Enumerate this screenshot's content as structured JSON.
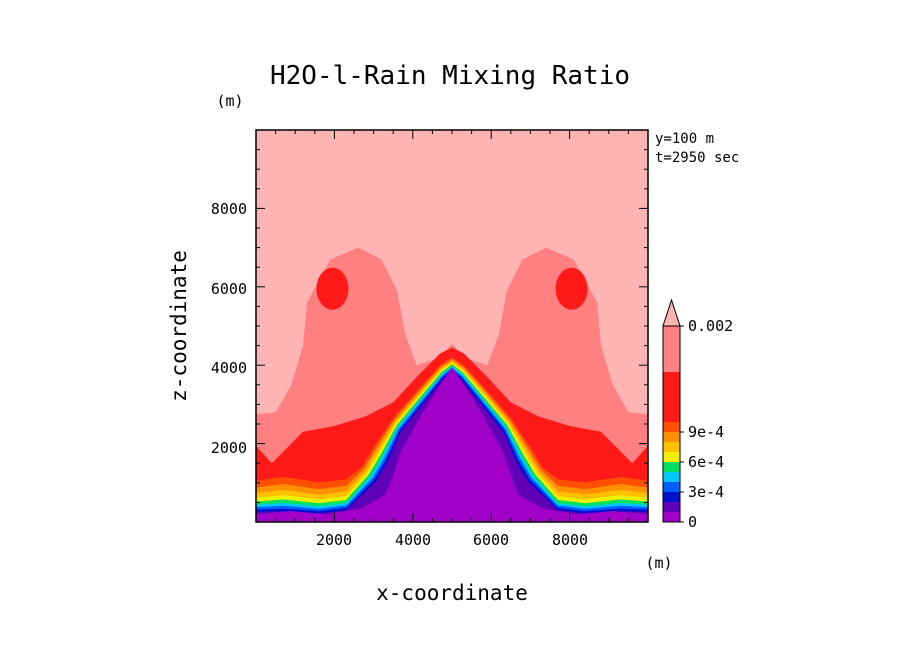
{
  "chart_data": {
    "type": "contour",
    "title": "H2O-l-Rain Mixing Ratio",
    "xlabel": "x-coordinate",
    "ylabel": "z-coordinate",
    "x_unit": "(m)",
    "y_unit": "(m)",
    "info": {
      "y_slice": "y=100 m",
      "time": "t=2950 sec"
    },
    "x_range": [
      0,
      10000
    ],
    "y_range": [
      0,
      10000
    ],
    "x_ticks": [
      2000,
      4000,
      6000,
      8000
    ],
    "x_tick_labels": [
      "2000",
      "4000",
      "6000",
      "8000"
    ],
    "y_ticks": [
      2000,
      4000,
      6000,
      8000
    ],
    "y_tick_labels": [
      "2000",
      "4000",
      "6000",
      "8000"
    ],
    "colorbar": {
      "levels": [
        0,
        0.0001,
        0.0002,
        0.0003,
        0.0004,
        0.0005,
        0.0006,
        0.0007,
        0.0008,
        0.0009,
        0.001,
        0.0015,
        0.002
      ],
      "colors": [
        "#a000c8",
        "#6000b8",
        "#0010d0",
        "#0060ff",
        "#00c8ff",
        "#00e060",
        "#f0f000",
        "#ffc000",
        "#ff9000",
        "#ff5000",
        "#ff1a1a",
        "#ff8080",
        "#ffb4b4"
      ],
      "tick_values": [
        0,
        0.0003,
        0.0006,
        0.0009,
        0.002
      ],
      "tick_labels": [
        "0",
        "3e-4",
        "6e-4",
        "9e-4",
        "0.002"
      ]
    },
    "regions": {
      "background": "#ffb4b4",
      "upper_cloud": "#ff8080",
      "rain_core": "#ff1a1a",
      "dry_dome": "#a000c8"
    }
  }
}
